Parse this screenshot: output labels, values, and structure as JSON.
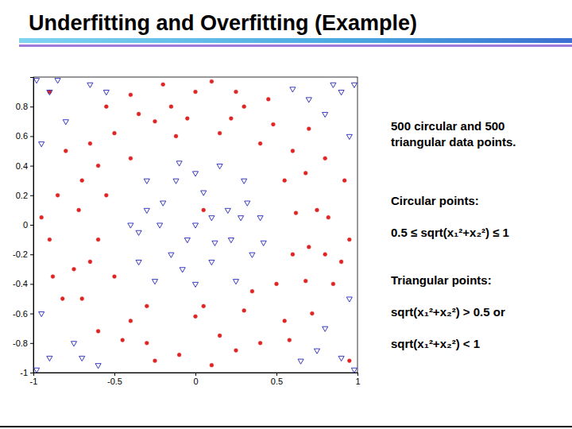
{
  "chart_data": {
    "type": "scatter",
    "title": "Underfitting and Overfitting (Example)",
    "annotations": [
      "500 circular and 500 triangular data points.",
      "Circular points:",
      "0.5 ≤ sqrt(x₁²+x₂²) ≤ 1",
      "Triangular points:",
      "sqrt(x₁²+x₂²) > 0.5 or",
      "sqrt(x₁²+x₂²) < 1"
    ],
    "xlim": [
      -1,
      1
    ],
    "ylim": [
      -1,
      1
    ],
    "xticks": [
      -1,
      -0.5,
      0,
      0.5,
      1
    ],
    "yticks": [
      -1,
      -0.8,
      -0.6,
      -0.4,
      -0.2,
      0,
      0.2,
      0.4,
      0.6,
      0.8
    ],
    "series": [
      {
        "color": "#e02424",
        "marker": "circle",
        "x": [
          0.75,
          0.8,
          0.6,
          0.3,
          0,
          -0.35,
          -0.65,
          -0.85,
          -0.9,
          -0.7,
          -0.45,
          -0.1,
          0.25,
          0.55,
          0.85,
          0.62,
          0.55,
          0.4,
          0.15,
          -0.12,
          -0.4,
          -0.55,
          -0.6,
          -0.5,
          -0.3,
          0,
          0.3,
          0.5,
          0.6,
          0.92,
          0.7,
          0.45,
          0.1,
          -0.2,
          -0.55,
          -0.8,
          -0.95,
          -0.88,
          -0.6,
          -0.25,
          0.1,
          0.4,
          0.72,
          0.95,
          0.68,
          0.22,
          -0.25,
          -0.7,
          -0.75,
          -0.4,
          0.15,
          0.68,
          0.8,
          -0.15,
          -0.72,
          0.05,
          0.82,
          -0.3,
          0.48,
          -0.5,
          0.35,
          -0.6,
          0.9,
          -0.05,
          0.58,
          -0.82,
          0.25,
          -0.4,
          0.7,
          -0.65,
          0.05,
          -0.9,
          0.95
        ],
        "y": [
          0.1,
          -0.2,
          0.5,
          0.8,
          0.9,
          0.75,
          0.55,
          0.2,
          -0.1,
          -0.5,
          -0.78,
          -0.88,
          -0.85,
          -0.65,
          -0.4,
          0.08,
          0.3,
          0.55,
          0.62,
          0.6,
          0.45,
          0.2,
          -0.1,
          -0.35,
          -0.55,
          -0.62,
          -0.58,
          -0.4,
          -0.2,
          0.3,
          0.65,
          0.85,
          0.97,
          0.95,
          0.8,
          0.5,
          0.05,
          -0.35,
          -0.72,
          -0.92,
          -0.95,
          -0.8,
          -0.6,
          -0.1,
          0.35,
          0.72,
          0.7,
          0.3,
          -0.3,
          -0.65,
          -0.75,
          -0.38,
          0.45,
          0.8,
          0.1,
          -0.55,
          0.05,
          -0.8,
          0.68,
          0.62,
          -0.45,
          0.4,
          -0.25,
          0.72,
          -0.78,
          -0.5,
          0.9,
          0.88,
          -0.15,
          -0.25,
          0.1,
          0.9,
          -0.92
        ]
      },
      {
        "color": "#2424b8",
        "marker": "triangle",
        "x": [
          0,
          0.2,
          -0.2,
          0.1,
          -0.15,
          0.3,
          -0.3,
          0.35,
          -0.35,
          0,
          0,
          0.4,
          -0.4,
          0.15,
          -0.1,
          0.25,
          -0.25,
          0.1,
          -0.05,
          0.22,
          -0.22,
          0.05,
          -0.12,
          0.32,
          -0.3,
          0.12,
          -0.35,
          0.42,
          -0.08,
          0.28,
          0.9,
          0.8,
          0.95,
          0.7,
          -0.9,
          -0.8,
          -0.95,
          -0.65,
          -0.9,
          -0.75,
          -0.95,
          -0.6,
          0.9,
          0.8,
          0.95,
          0.65,
          0.98,
          -0.98,
          -0.98,
          0.98,
          0.85,
          -0.85,
          -0.7,
          0.75,
          0.6,
          -0.55
        ],
        "y": [
          0,
          0.1,
          0.15,
          -0.25,
          -0.2,
          0.3,
          0.3,
          -0.2,
          -0.25,
          0.35,
          -0.4,
          0.05,
          0,
          0.4,
          0.42,
          -0.38,
          -0.38,
          0.05,
          -0.1,
          -0.1,
          0,
          0.22,
          0.3,
          0.15,
          0.1,
          -0.12,
          -0.05,
          -0.12,
          -0.3,
          0.05,
          0.9,
          0.75,
          0.6,
          0.85,
          0.9,
          0.7,
          0.55,
          0.95,
          -0.9,
          -0.8,
          -0.6,
          -0.95,
          -0.9,
          -0.7,
          -0.5,
          -0.92,
          0.95,
          0.98,
          -0.98,
          -0.98,
          0.95,
          0.98,
          -0.9,
          -0.85,
          0.92,
          0.9
        ]
      }
    ]
  }
}
